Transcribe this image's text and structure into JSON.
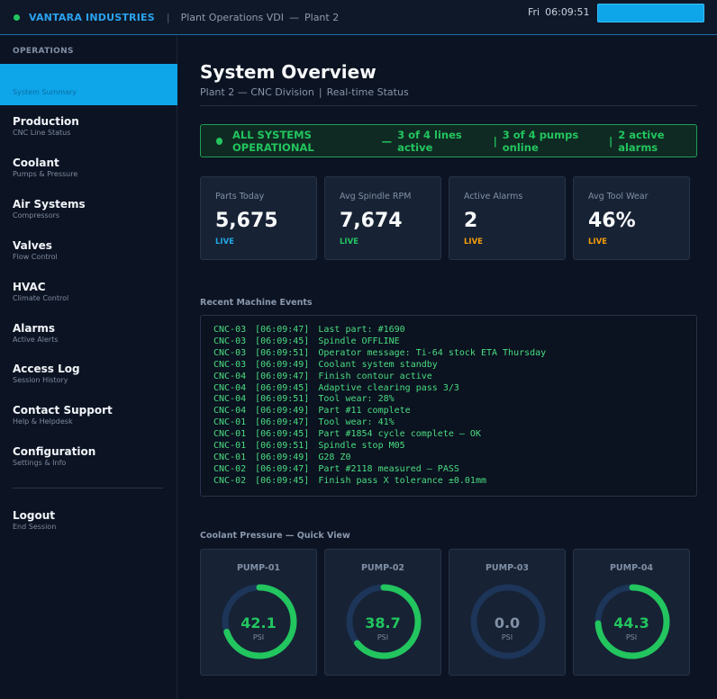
{
  "topbar": {
    "brand": "VANTARA INDUSTRIES",
    "separator": "|",
    "vdi_label": "Plant Operations VDI",
    "dash": "—",
    "plant": "Plant 2",
    "day": "Fri",
    "time": "06:09:51"
  },
  "sidebar": {
    "section": "OPERATIONS",
    "active_item_sub": "System Summary",
    "items": [
      {
        "label": "Production",
        "sub": "CNC Line Status"
      },
      {
        "label": "Coolant",
        "sub": "Pumps & Pressure"
      },
      {
        "label": "Air Systems",
        "sub": "Compressors"
      },
      {
        "label": "Valves",
        "sub": "Flow Control"
      },
      {
        "label": "HVAC",
        "sub": "Climate Control"
      },
      {
        "label": "Alarms",
        "sub": "Active Alerts"
      },
      {
        "label": "Access Log",
        "sub": "Session History"
      },
      {
        "label": "Contact Support",
        "sub": "Help & Helpdesk"
      },
      {
        "label": "Configuration",
        "sub": "Settings & Info"
      }
    ],
    "logout": {
      "label": "Logout",
      "sub": "End Session"
    }
  },
  "page": {
    "title": "System Overview",
    "sub_a": "Plant 2 — CNC Division",
    "sub_sep": "|",
    "sub_b": "Real-time Status"
  },
  "banner": {
    "status": "ALL SYSTEMS OPERATIONAL",
    "dash": "—",
    "lines": "3 of 4 lines active",
    "sep": "|",
    "pumps": "3 of 4 pumps online",
    "alarms": "2 active alarms"
  },
  "stats": [
    {
      "label": "Parts Today",
      "value": "5,675",
      "tag": "LIVE",
      "tag_color": "#22a8e6"
    },
    {
      "label": "Avg Spindle RPM",
      "value": "7,674",
      "tag": "LIVE",
      "tag_color": "#22c55e"
    },
    {
      "label": "Active Alarms",
      "value": "2",
      "tag": "LIVE",
      "tag_color": "#f59e0b"
    },
    {
      "label": "Avg Tool Wear",
      "value": "46%",
      "tag": "LIVE",
      "tag_color": "#f59e0b"
    }
  ],
  "events": {
    "title": "Recent Machine Events",
    "lines": [
      {
        "machine": "CNC-03",
        "ts": "[06:09:47]",
        "msg": "Last part: #1690"
      },
      {
        "machine": "CNC-03",
        "ts": "[06:09:45]",
        "msg": "Spindle OFFLINE"
      },
      {
        "machine": "CNC-03",
        "ts": "[06:09:51]",
        "msg": "Operator message: Ti-64 stock ETA Thursday"
      },
      {
        "machine": "CNC-03",
        "ts": "[06:09:49]",
        "msg": "Coolant system standby"
      },
      {
        "machine": "CNC-04",
        "ts": "[06:09:47]",
        "msg": "Finish contour active"
      },
      {
        "machine": "CNC-04",
        "ts": "[06:09:45]",
        "msg": "Adaptive clearing pass 3/3"
      },
      {
        "machine": "CNC-04",
        "ts": "[06:09:51]",
        "msg": "Tool wear: 28%"
      },
      {
        "machine": "CNC-04",
        "ts": "[06:09:49]",
        "msg": "Part #11 complete"
      },
      {
        "machine": "CNC-01",
        "ts": "[06:09:47]",
        "msg": "Tool wear: 41%"
      },
      {
        "machine": "CNC-01",
        "ts": "[06:09:45]",
        "msg": "Part #1854 cycle complete — OK"
      },
      {
        "machine": "CNC-01",
        "ts": "[06:09:51]",
        "msg": "Spindle stop M05"
      },
      {
        "machine": "CNC-01",
        "ts": "[06:09:49]",
        "msg": "G28 Z0"
      },
      {
        "machine": "CNC-02",
        "ts": "[06:09:47]",
        "msg": "Part #2118 measured — PASS"
      },
      {
        "machine": "CNC-02",
        "ts": "[06:09:45]",
        "msg": "Finish pass X tolerance ±0.01mm"
      }
    ]
  },
  "coolant": {
    "title": "Coolant Pressure — Quick View",
    "pumps": [
      {
        "name": "PUMP-01",
        "value": "42.1",
        "unit": "PSI",
        "fraction": 0.7,
        "color": "#22c55e"
      },
      {
        "name": "PUMP-02",
        "value": "38.7",
        "unit": "PSI",
        "fraction": 0.64,
        "color": "#22c55e"
      },
      {
        "name": "PUMP-03",
        "value": "0.0",
        "unit": "PSI",
        "fraction": 0.0,
        "color": "#8190a6"
      },
      {
        "name": "PUMP-04",
        "value": "44.3",
        "unit": "PSI",
        "fraction": 0.74,
        "color": "#22c55e"
      }
    ],
    "track_color": "#1c3558"
  }
}
